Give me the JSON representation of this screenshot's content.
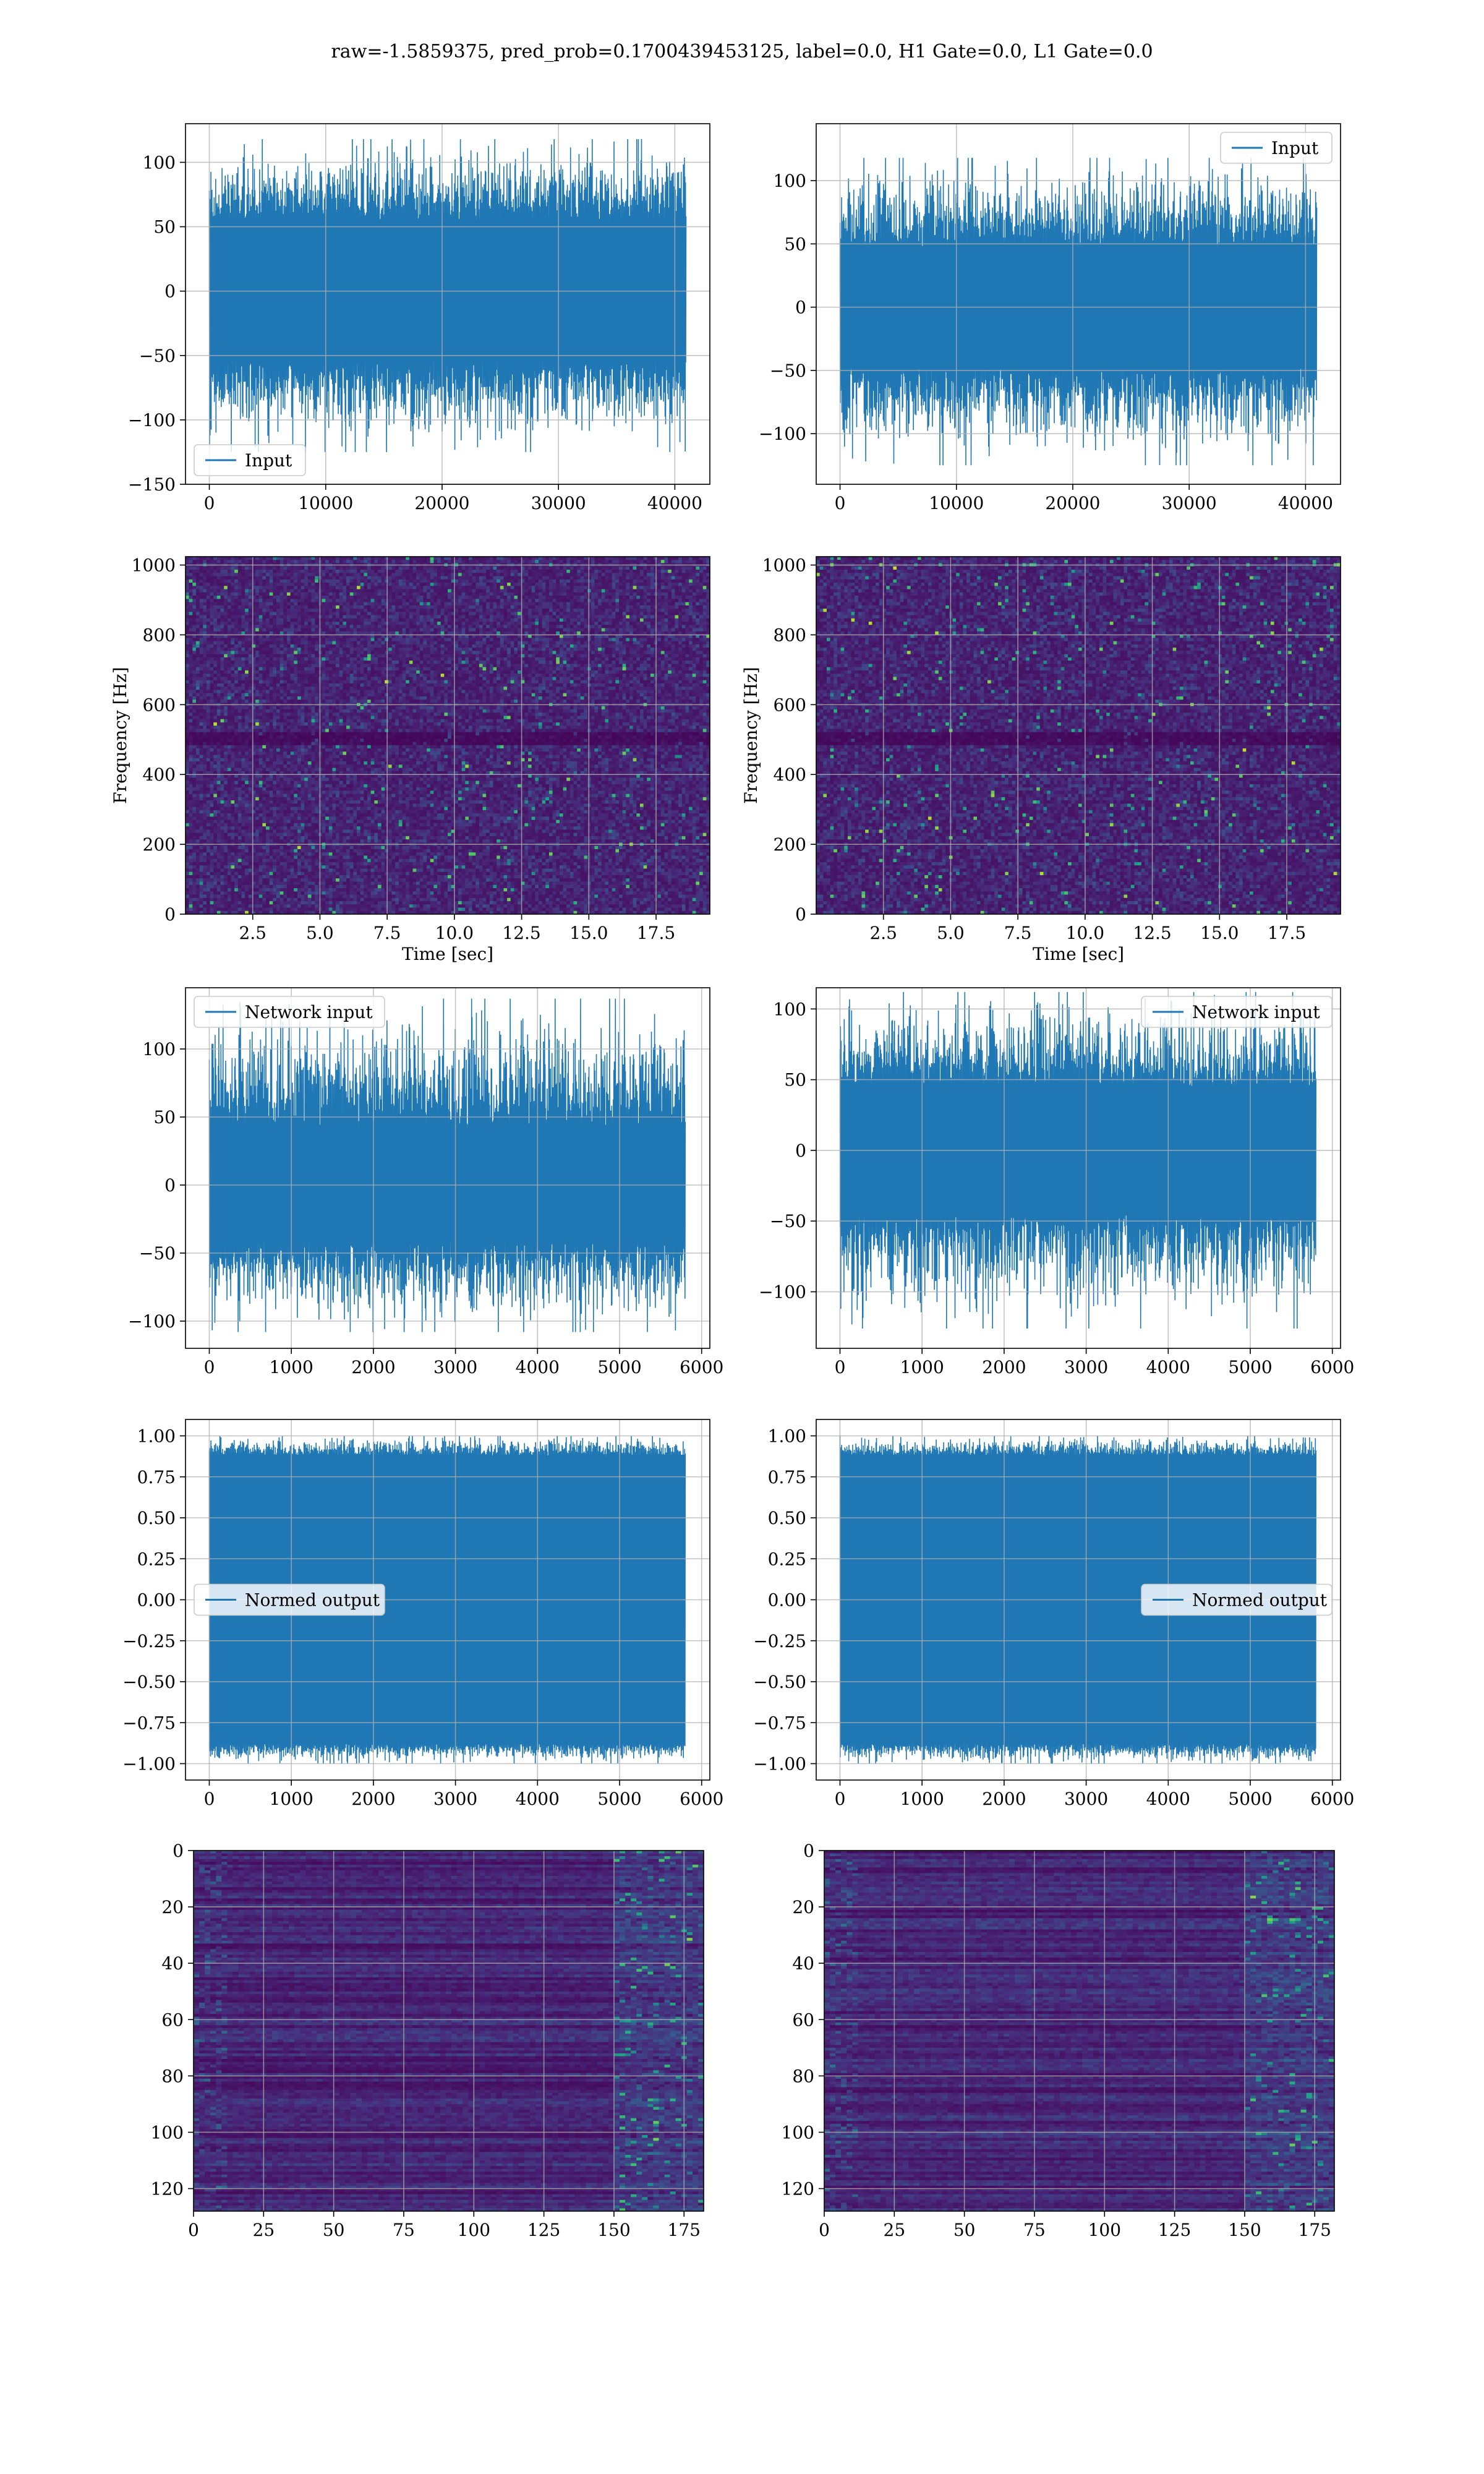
{
  "figure": {
    "suptitle": "raw=-1.5859375, pred_prob=0.1700439453125, label=0.0, H1 Gate=0.0, L1 Gate=0.0",
    "colors": {
      "line": "#1f77b4",
      "grid": "#b0b0b0",
      "viridis": [
        "#440154",
        "#482878",
        "#3e4989",
        "#31688e",
        "#26828e",
        "#1f9e89",
        "#35b779",
        "#6ece58",
        "#b5de2b",
        "#fde725"
      ]
    }
  },
  "chart_data": [
    {
      "id": "h1-input",
      "type": "line",
      "legend": "Input",
      "legend_loc": "lower-left",
      "xlim": [
        -2048,
        43008
      ],
      "ylim": [
        -150,
        130
      ],
      "xticks": [
        0,
        10000,
        20000,
        30000,
        40000
      ],
      "yticks": [
        -150,
        -100,
        -50,
        0,
        50,
        100
      ],
      "series": [
        {
          "name": "Input",
          "x_range": [
            0,
            40960
          ],
          "core_band": [
            -55,
            55
          ],
          "envelope": [
            -125,
            118
          ],
          "samples": 40960
        }
      ]
    },
    {
      "id": "l1-input",
      "type": "line",
      "legend": "Input",
      "legend_loc": "upper-right",
      "xlim": [
        -2048,
        43008
      ],
      "ylim": [
        -140,
        145
      ],
      "xticks": [
        0,
        10000,
        20000,
        30000,
        40000
      ],
      "yticks": [
        -100,
        -50,
        0,
        50,
        100
      ],
      "series": [
        {
          "name": "Input",
          "x_range": [
            0,
            40960
          ],
          "core_band": [
            -48,
            48
          ],
          "envelope": [
            -125,
            118
          ],
          "samples": 40960
        }
      ]
    },
    {
      "id": "h1-spectrogram",
      "type": "heatmap",
      "xlabel": "Time [sec]",
      "ylabel": "Frequency [Hz]",
      "xlim": [
        0,
        19.5
      ],
      "ylim": [
        0,
        1024
      ],
      "xticks": [
        2.5,
        5.0,
        7.5,
        10.0,
        12.5,
        15.0,
        17.5
      ],
      "yticks": [
        0,
        200,
        400,
        600,
        800,
        1000
      ],
      "dark_band_hz": [
        480,
        520
      ],
      "colormap": "viridis"
    },
    {
      "id": "l1-spectrogram",
      "type": "heatmap",
      "xlabel": "Time [sec]",
      "ylabel": "Frequency [Hz]",
      "xlim": [
        0,
        19.5
      ],
      "ylim": [
        0,
        1024
      ],
      "xticks": [
        2.5,
        5.0,
        7.5,
        10.0,
        12.5,
        15.0,
        17.5
      ],
      "yticks": [
        0,
        200,
        400,
        600,
        800,
        1000
      ],
      "dark_band_hz": [
        480,
        520
      ],
      "colormap": "viridis"
    },
    {
      "id": "h1-network-input",
      "type": "line",
      "legend": "Network input",
      "legend_loc": "upper-left",
      "xlim": [
        -290,
        6100
      ],
      "ylim": [
        -120,
        145
      ],
      "xticks": [
        0,
        1000,
        2000,
        3000,
        4000,
        5000,
        6000
      ],
      "yticks": [
        -100,
        -50,
        0,
        50,
        100
      ],
      "series": [
        {
          "name": "Network input",
          "x_range": [
            0,
            5800
          ],
          "core_band": [
            -42,
            42
          ],
          "envelope": [
            -108,
            137
          ],
          "samples": 5800
        }
      ]
    },
    {
      "id": "l1-network-input",
      "type": "line",
      "legend": "Network input",
      "legend_loc": "upper-right",
      "xlim": [
        -290,
        6100
      ],
      "ylim": [
        -140,
        115
      ],
      "xticks": [
        0,
        1000,
        2000,
        3000,
        4000,
        5000,
        6000
      ],
      "yticks": [
        -100,
        -50,
        0,
        50,
        100
      ],
      "series": [
        {
          "name": "Network input",
          "x_range": [
            0,
            5800
          ],
          "core_band": [
            -45,
            45
          ],
          "envelope": [
            -126,
            112
          ],
          "samples": 5800
        }
      ]
    },
    {
      "id": "h1-normed-output",
      "type": "line",
      "legend": "Normed output",
      "legend_loc": "center-left",
      "xlim": [
        -290,
        6100
      ],
      "ylim": [
        -1.1,
        1.1
      ],
      "xticks": [
        0,
        1000,
        2000,
        3000,
        4000,
        5000,
        6000
      ],
      "yticks": [
        -1.0,
        -0.75,
        -0.5,
        -0.25,
        0.0,
        0.25,
        0.5,
        0.75,
        1.0
      ],
      "series": [
        {
          "name": "Normed output",
          "x_range": [
            0,
            5800
          ],
          "core_band": [
            -0.88,
            0.88
          ],
          "envelope": [
            -1.0,
            1.0
          ],
          "samples": 5800
        }
      ]
    },
    {
      "id": "l1-normed-output",
      "type": "line",
      "legend": "Normed output",
      "legend_loc": "center-right",
      "xlim": [
        -290,
        6100
      ],
      "ylim": [
        -1.1,
        1.1
      ],
      "xticks": [
        0,
        1000,
        2000,
        3000,
        4000,
        5000,
        6000
      ],
      "yticks": [
        -1.0,
        -0.75,
        -0.5,
        -0.25,
        0.0,
        0.25,
        0.5,
        0.75,
        1.0
      ],
      "series": [
        {
          "name": "Normed output",
          "x_range": [
            0,
            5800
          ],
          "core_band": [
            -0.88,
            0.88
          ],
          "envelope": [
            -1.0,
            1.0
          ],
          "samples": 5800
        }
      ]
    },
    {
      "id": "h1-feature-map",
      "type": "heatmap",
      "xlim": [
        0,
        182
      ],
      "ylim": [
        128,
        0
      ],
      "xticks": [
        0,
        25,
        50,
        75,
        100,
        125,
        150,
        175
      ],
      "yticks": [
        0,
        20,
        40,
        60,
        80,
        100,
        120
      ],
      "rows": 128,
      "cols": 182,
      "hot_cols_from": 150,
      "colormap": "viridis"
    },
    {
      "id": "l1-feature-map",
      "type": "heatmap",
      "xlim": [
        0,
        182
      ],
      "ylim": [
        128,
        0
      ],
      "xticks": [
        0,
        25,
        50,
        75,
        100,
        125,
        150,
        175
      ],
      "yticks": [
        0,
        20,
        40,
        60,
        80,
        100,
        120
      ],
      "rows": 128,
      "cols": 182,
      "hot_cols_from": 150,
      "colormap": "viridis"
    }
  ]
}
